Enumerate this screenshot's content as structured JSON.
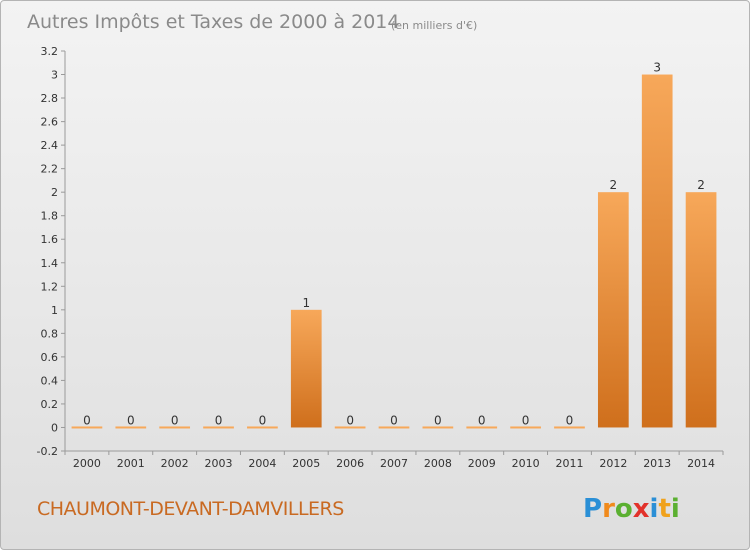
{
  "header": {
    "title": "Autres Impôts et Taxes de 2000 à 2014",
    "unit": "(en milliers d'€)"
  },
  "footer": {
    "commune": "CHAUMONT-DEVANT-DAMVILLERS",
    "brand": "Proxiti",
    "brand_letters": [
      {
        "ch": "P",
        "color": "#2a8fd6"
      },
      {
        "ch": "r",
        "color": "#f08a1c"
      },
      {
        "ch": "o",
        "color": "#5bb031"
      },
      {
        "ch": "x",
        "color": "#e2322b"
      },
      {
        "ch": "i",
        "color": "#2a8fd6"
      },
      {
        "ch": "t",
        "color": "#f0a21c"
      },
      {
        "ch": "i",
        "color": "#5bb031"
      }
    ]
  },
  "colors": {
    "bar_light": "#f7a85a",
    "bar_dark": "#cf6f1c",
    "axis": "#9a9a9a",
    "text": "#333333"
  },
  "chart_data": {
    "type": "bar",
    "title": "Autres Impôts et Taxes de 2000 à 2014",
    "subtitle": "(en milliers d'€)",
    "xlabel": "",
    "ylabel": "",
    "categories": [
      "2000",
      "2001",
      "2002",
      "2003",
      "2004",
      "2005",
      "2006",
      "2007",
      "2008",
      "2009",
      "2010",
      "2011",
      "2012",
      "2013",
      "2014"
    ],
    "values": [
      0,
      0,
      0,
      0,
      0,
      1,
      0,
      0,
      0,
      0,
      0,
      0,
      2,
      3,
      2
    ],
    "data_labels": [
      "0",
      "0",
      "0",
      "0",
      "0",
      "1",
      "0",
      "0",
      "0",
      "0",
      "0",
      "0",
      "2",
      "3",
      "2"
    ],
    "yticks": [
      -0.2,
      0,
      0.2,
      0.4,
      0.6,
      0.8,
      1,
      1.2,
      1.4,
      1.6,
      1.8,
      2,
      2.2,
      2.4,
      2.6,
      2.8,
      3,
      3.2
    ],
    "ytick_labels": [
      "-0.2",
      "0",
      "0.2",
      "0.4",
      "0.6",
      "0.8",
      "1",
      "1.2",
      "1.4",
      "1.6",
      "1.8",
      "2",
      "2.2",
      "2.4",
      "2.6",
      "2.8",
      "3",
      "3.2"
    ],
    "ylim": [
      -0.2,
      3.2
    ],
    "grid": false,
    "legend": "none"
  }
}
